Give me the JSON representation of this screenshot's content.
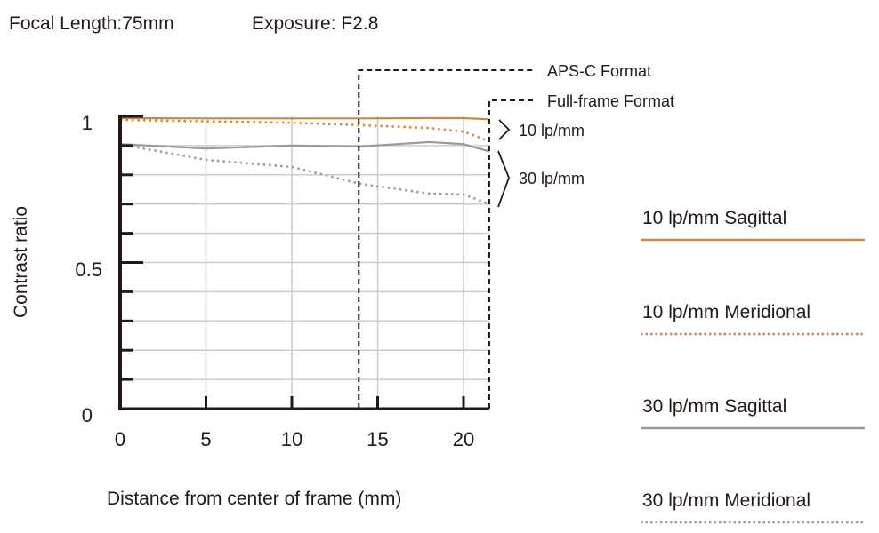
{
  "header": {
    "focal_length": "Focal Length:75mm",
    "exposure": "Exposure: F2.8"
  },
  "chart_data": {
    "type": "line",
    "title": "",
    "xlabel": "Distance from center of frame (mm)",
    "ylabel": "Contrast ratio",
    "xlim": [
      0,
      21.5
    ],
    "ylim": [
      0,
      1
    ],
    "x_ticks": [
      0,
      5,
      10,
      15,
      20
    ],
    "x_tick_labels": [
      "0",
      "5",
      "10",
      "15",
      "20"
    ],
    "y_tick_labels": [
      "0",
      "0.5",
      "1"
    ],
    "grid": true,
    "colors": {
      "orange": "#c8883f",
      "gray": "#999999",
      "axis": "#231815"
    },
    "format_markers": [
      {
        "label": "APS-C Format",
        "x": 13.9
      },
      {
        "label": "Full-frame Format",
        "x": 21.5
      }
    ],
    "group_labels": [
      "10 lp/mm",
      "30 lp/mm"
    ],
    "x": [
      0,
      5,
      10,
      14,
      18,
      20,
      21.5
    ],
    "series": [
      {
        "name": "10 lp/mm Sagittal",
        "color": "#c8883f",
        "style": "solid",
        "values": [
          0.994,
          0.993,
          0.993,
          0.993,
          0.994,
          0.994,
          0.99
        ]
      },
      {
        "name": "10 lp/mm Meridional",
        "color": "#c8883f",
        "style": "dotted",
        "values": [
          0.988,
          0.983,
          0.978,
          0.97,
          0.96,
          0.948,
          0.915
        ]
      },
      {
        "name": "30 lp/mm Sagittal",
        "color": "#999999",
        "style": "solid",
        "values": [
          0.905,
          0.89,
          0.9,
          0.897,
          0.912,
          0.905,
          0.88
        ]
      },
      {
        "name": "30 lp/mm Meridional",
        "color": "#999999",
        "style": "dotted",
        "values": [
          0.905,
          0.851,
          0.827,
          0.769,
          0.736,
          0.733,
          0.7
        ]
      }
    ],
    "legend_position": "right"
  }
}
